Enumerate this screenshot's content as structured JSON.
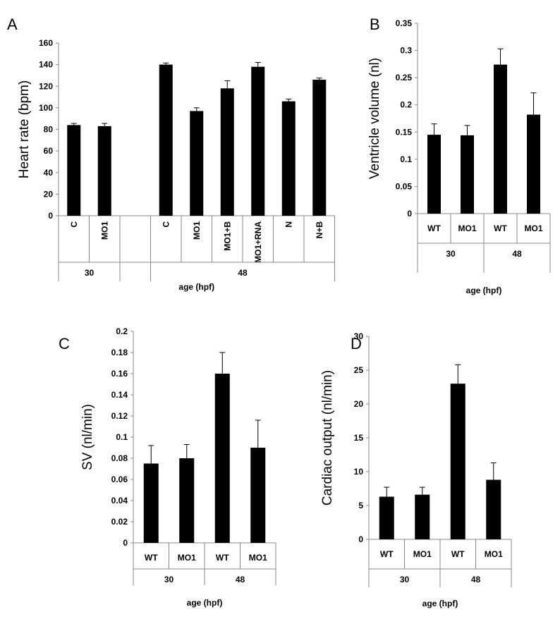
{
  "chart_data": [
    {
      "panel": "A",
      "type": "bar",
      "ylabel": "Heart rate (bpm)",
      "xlabel": "age (hpf)",
      "ylim": [
        0,
        160
      ],
      "yticks": [
        "0",
        "20",
        "40",
        "60",
        "80",
        "100",
        "120",
        "140",
        "160"
      ],
      "categories": [
        "C",
        "MO1",
        "",
        "C",
        "MO1",
        "MO1+B",
        "MO1+RNA",
        "N",
        "N+B"
      ],
      "groups": [
        {
          "label": "30",
          "span": [
            0,
            1
          ]
        },
        {
          "label": "",
          "span": [
            2,
            2
          ]
        },
        {
          "label": "48",
          "span": [
            3,
            8
          ]
        }
      ],
      "values": [
        84,
        83,
        null,
        140,
        97,
        118,
        138,
        106,
        126
      ],
      "errors": [
        1.5,
        2.5,
        null,
        1.5,
        3,
        7,
        4,
        2,
        1.5
      ]
    },
    {
      "panel": "B",
      "type": "bar",
      "ylabel": "Ventricle volume (nl)",
      "xlabel": "age (hpf)",
      "ylim": [
        0,
        0.35
      ],
      "yticks": [
        "0",
        "0.05",
        "0.1",
        "0.15",
        "0.2",
        "0.25",
        "0.3",
        "0.35"
      ],
      "categories": [
        "WT",
        "MO1",
        "WT",
        "MO1"
      ],
      "groups": [
        {
          "label": "30",
          "span": [
            0,
            1
          ]
        },
        {
          "label": "48",
          "span": [
            2,
            3
          ]
        }
      ],
      "values": [
        0.145,
        0.144,
        0.274,
        0.182
      ],
      "errors": [
        0.02,
        0.018,
        0.029,
        0.04
      ]
    },
    {
      "panel": "C",
      "type": "bar",
      "ylabel": "SV (nl/min)",
      "xlabel": "age (hpf)",
      "ylim": [
        0,
        0.2
      ],
      "yticks": [
        "0",
        "0.02",
        "0.04",
        "0.06",
        "0.08",
        "0.1",
        "0.12",
        "0.14",
        "0.16",
        "0.18",
        "0.2"
      ],
      "categories": [
        "WT",
        "MO1",
        "WT",
        "MO1"
      ],
      "groups": [
        {
          "label": "30",
          "span": [
            0,
            1
          ]
        },
        {
          "label": "48",
          "span": [
            2,
            3
          ]
        }
      ],
      "values": [
        0.075,
        0.08,
        0.16,
        0.09
      ],
      "errors": [
        0.017,
        0.013,
        0.02,
        0.026
      ]
    },
    {
      "panel": "D",
      "type": "bar",
      "ylabel": "Cardiac output (nl/min)",
      "xlabel": "age (hpf)",
      "ylim": [
        0,
        30
      ],
      "yticks": [
        "0",
        "5",
        "10",
        "15",
        "20",
        "25",
        "30"
      ],
      "categories": [
        "WT",
        "MO1",
        "WT",
        "MO1"
      ],
      "groups": [
        {
          "label": "30",
          "span": [
            0,
            1
          ]
        },
        {
          "label": "48",
          "span": [
            2,
            3
          ]
        }
      ],
      "values": [
        6.3,
        6.6,
        23,
        8.8
      ],
      "errors": [
        1.4,
        1.1,
        2.8,
        2.5
      ]
    }
  ],
  "colors": {
    "bar": "#000000",
    "axis": "#888888"
  }
}
